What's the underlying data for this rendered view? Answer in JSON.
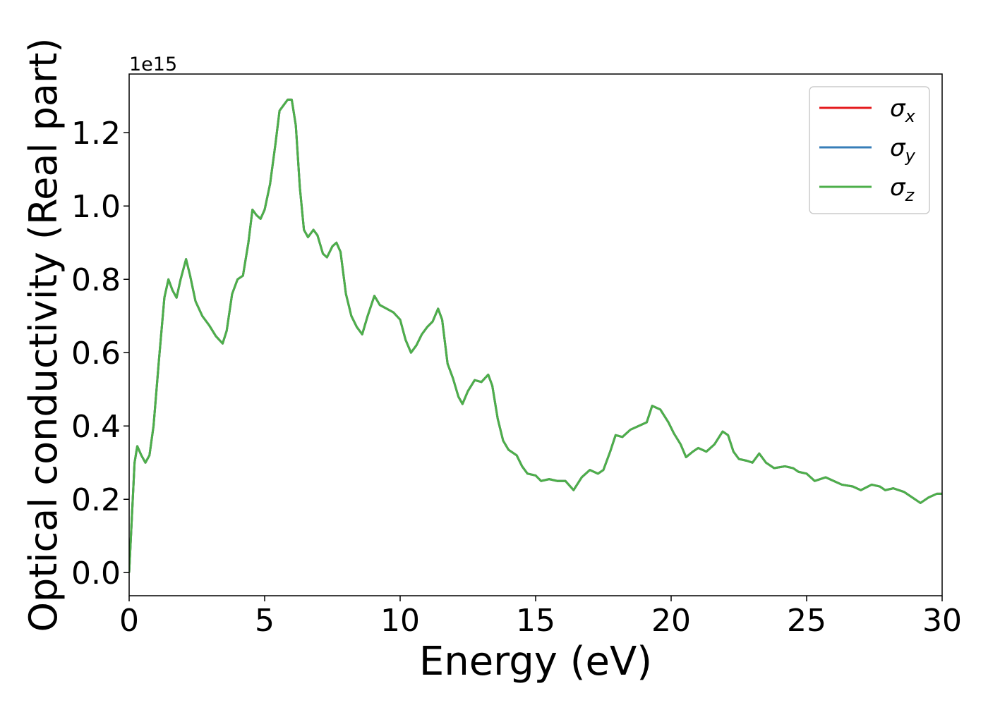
{
  "chart_data": {
    "type": "line",
    "x_label": "Energy (eV)",
    "y_label": "Optical conductivity (Real part)",
    "y_offset_label": "1e15",
    "xlim": [
      0,
      30
    ],
    "xticks": [
      0,
      5,
      10,
      15,
      20,
      25,
      30
    ],
    "ylim": [
      -0.063,
      1.36
    ],
    "yticks": [
      {
        "value": 0,
        "label": "0.0"
      },
      0.2,
      0.4,
      0.6,
      0.8,
      {
        "value": 1,
        "label": "1.0"
      },
      1.2
    ],
    "legend": "upper right",
    "x": [
      0,
      0.1,
      0.2,
      0.3,
      0.45,
      0.6,
      0.75,
      0.9,
      1.1,
      1.3,
      1.45,
      1.6,
      1.75,
      1.9,
      2.1,
      2.25,
      2.45,
      2.7,
      2.95,
      3.2,
      3.45,
      3.6,
      3.8,
      4.0,
      4.2,
      4.4,
      4.55,
      4.7,
      4.85,
      5.0,
      5.2,
      5.4,
      5.55,
      5.7,
      5.85,
      6.0,
      6.15,
      6.3,
      6.45,
      6.6,
      6.8,
      6.95,
      7.15,
      7.3,
      7.5,
      7.65,
      7.8,
      8.0,
      8.2,
      8.4,
      8.6,
      8.8,
      9.05,
      9.25,
      9.5,
      9.75,
      10.0,
      10.2,
      10.4,
      10.6,
      10.8,
      11.0,
      11.2,
      11.4,
      11.55,
      11.75,
      11.95,
      12.15,
      12.3,
      12.5,
      12.75,
      13.0,
      13.25,
      13.4,
      13.6,
      13.8,
      14.0,
      14.3,
      14.5,
      14.7,
      15.0,
      15.2,
      15.5,
      15.8,
      16.1,
      16.4,
      16.7,
      17.0,
      17.3,
      17.5,
      17.75,
      17.95,
      18.2,
      18.5,
      18.8,
      19.1,
      19.3,
      19.6,
      19.9,
      20.1,
      20.35,
      20.55,
      20.8,
      21.0,
      21.3,
      21.6,
      21.9,
      22.1,
      22.3,
      22.5,
      22.8,
      23.0,
      23.25,
      23.5,
      23.8,
      24.2,
      24.5,
      24.7,
      25.0,
      25.3,
      25.7,
      26.0,
      26.3,
      26.7,
      27.0,
      27.4,
      27.7,
      27.9,
      28.2,
      28.6,
      29.0,
      29.2,
      29.5,
      29.8,
      30.0
    ],
    "series": [
      {
        "name": "σx",
        "color": "#e41a1c",
        "values": [
          0,
          0.15,
          0.3,
          0.345,
          0.32,
          0.3,
          0.32,
          0.4,
          0.58,
          0.75,
          0.8,
          0.77,
          0.75,
          0.8,
          0.855,
          0.81,
          0.74,
          0.7,
          0.675,
          0.645,
          0.625,
          0.66,
          0.76,
          0.8,
          0.81,
          0.9,
          0.99,
          0.975,
          0.965,
          0.99,
          1.06,
          1.17,
          1.26,
          1.275,
          1.29,
          1.29,
          1.22,
          1.05,
          0.935,
          0.915,
          0.935,
          0.92,
          0.87,
          0.86,
          0.89,
          0.9,
          0.875,
          0.76,
          0.7,
          0.67,
          0.65,
          0.7,
          0.755,
          0.73,
          0.72,
          0.71,
          0.69,
          0.635,
          0.6,
          0.62,
          0.65,
          0.67,
          0.685,
          0.72,
          0.69,
          0.57,
          0.53,
          0.48,
          0.46,
          0.495,
          0.525,
          0.52,
          0.54,
          0.51,
          0.42,
          0.36,
          0.335,
          0.32,
          0.29,
          0.27,
          0.265,
          0.25,
          0.255,
          0.25,
          0.25,
          0.225,
          0.26,
          0.28,
          0.27,
          0.28,
          0.33,
          0.375,
          0.37,
          0.39,
          0.4,
          0.41,
          0.455,
          0.445,
          0.41,
          0.38,
          0.35,
          0.315,
          0.33,
          0.34,
          0.33,
          0.35,
          0.385,
          0.375,
          0.33,
          0.31,
          0.305,
          0.3,
          0.325,
          0.3,
          0.285,
          0.29,
          0.285,
          0.275,
          0.27,
          0.25,
          0.26,
          0.25,
          0.24,
          0.235,
          0.225,
          0.24,
          0.235,
          0.225,
          0.23,
          0.22,
          0.2,
          0.19,
          0.205,
          0.215,
          0.215
        ]
      },
      {
        "name": "σy",
        "color": "#377eb8",
        "values": [
          0,
          0.15,
          0.3,
          0.345,
          0.32,
          0.3,
          0.32,
          0.4,
          0.58,
          0.75,
          0.8,
          0.77,
          0.75,
          0.8,
          0.855,
          0.81,
          0.74,
          0.7,
          0.675,
          0.645,
          0.625,
          0.66,
          0.76,
          0.8,
          0.81,
          0.9,
          0.99,
          0.975,
          0.965,
          0.99,
          1.06,
          1.17,
          1.26,
          1.275,
          1.29,
          1.29,
          1.22,
          1.05,
          0.935,
          0.915,
          0.935,
          0.92,
          0.87,
          0.86,
          0.89,
          0.9,
          0.875,
          0.76,
          0.7,
          0.67,
          0.65,
          0.7,
          0.755,
          0.73,
          0.72,
          0.71,
          0.69,
          0.635,
          0.6,
          0.62,
          0.65,
          0.67,
          0.685,
          0.72,
          0.69,
          0.57,
          0.53,
          0.48,
          0.46,
          0.495,
          0.525,
          0.52,
          0.54,
          0.51,
          0.42,
          0.36,
          0.335,
          0.32,
          0.29,
          0.27,
          0.265,
          0.25,
          0.255,
          0.25,
          0.25,
          0.225,
          0.26,
          0.28,
          0.27,
          0.28,
          0.33,
          0.375,
          0.37,
          0.39,
          0.4,
          0.41,
          0.455,
          0.445,
          0.41,
          0.38,
          0.35,
          0.315,
          0.33,
          0.34,
          0.33,
          0.35,
          0.385,
          0.375,
          0.33,
          0.31,
          0.305,
          0.3,
          0.325,
          0.3,
          0.285,
          0.29,
          0.285,
          0.275,
          0.27,
          0.25,
          0.26,
          0.25,
          0.24,
          0.235,
          0.225,
          0.24,
          0.235,
          0.225,
          0.23,
          0.22,
          0.2,
          0.19,
          0.205,
          0.215,
          0.215
        ]
      },
      {
        "name": "σz",
        "color": "#4daf4a",
        "values": [
          0,
          0.15,
          0.3,
          0.345,
          0.32,
          0.3,
          0.32,
          0.4,
          0.58,
          0.75,
          0.8,
          0.77,
          0.75,
          0.8,
          0.855,
          0.81,
          0.74,
          0.7,
          0.675,
          0.645,
          0.625,
          0.66,
          0.76,
          0.8,
          0.81,
          0.9,
          0.99,
          0.975,
          0.965,
          0.99,
          1.06,
          1.17,
          1.26,
          1.275,
          1.29,
          1.29,
          1.22,
          1.05,
          0.935,
          0.915,
          0.935,
          0.92,
          0.87,
          0.86,
          0.89,
          0.9,
          0.875,
          0.76,
          0.7,
          0.67,
          0.65,
          0.7,
          0.755,
          0.73,
          0.72,
          0.71,
          0.69,
          0.635,
          0.6,
          0.62,
          0.65,
          0.67,
          0.685,
          0.72,
          0.69,
          0.57,
          0.53,
          0.48,
          0.46,
          0.495,
          0.525,
          0.52,
          0.54,
          0.51,
          0.42,
          0.36,
          0.335,
          0.32,
          0.29,
          0.27,
          0.265,
          0.25,
          0.255,
          0.25,
          0.25,
          0.225,
          0.26,
          0.28,
          0.27,
          0.28,
          0.33,
          0.375,
          0.37,
          0.39,
          0.4,
          0.41,
          0.455,
          0.445,
          0.41,
          0.38,
          0.35,
          0.315,
          0.33,
          0.34,
          0.33,
          0.35,
          0.385,
          0.375,
          0.33,
          0.31,
          0.305,
          0.3,
          0.325,
          0.3,
          0.285,
          0.29,
          0.285,
          0.275,
          0.27,
          0.25,
          0.26,
          0.25,
          0.24,
          0.235,
          0.225,
          0.24,
          0.235,
          0.225,
          0.23,
          0.22,
          0.2,
          0.19,
          0.205,
          0.215,
          0.215
        ]
      }
    ]
  }
}
